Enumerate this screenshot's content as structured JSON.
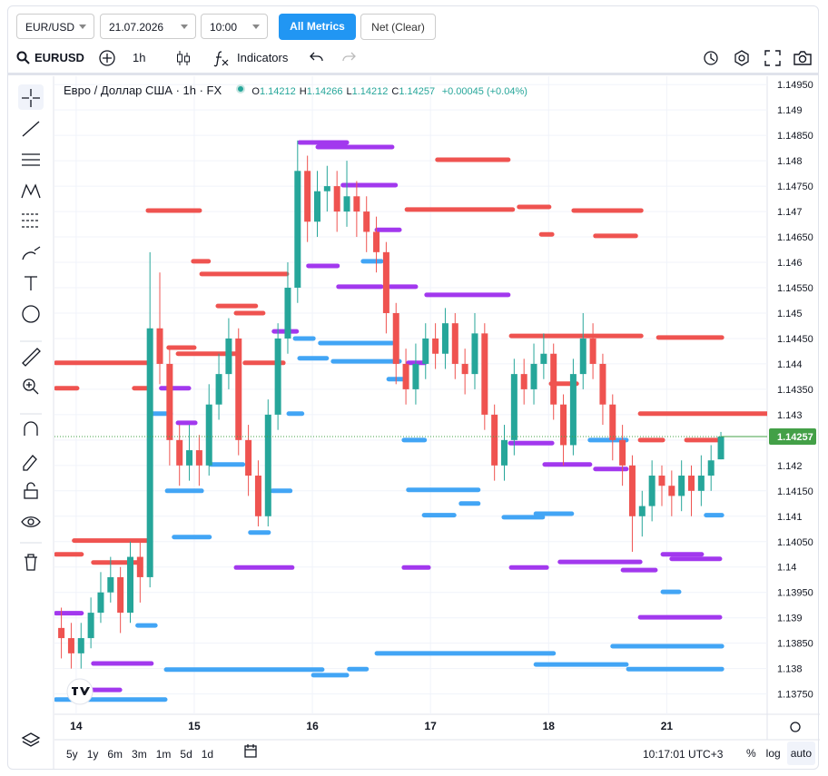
{
  "toolbar": {
    "symbol": "EUR/USD",
    "date": "21.07.2026",
    "time": "10:00",
    "buttons": [
      "All Metrics",
      "Net (Clear)"
    ]
  },
  "header": {
    "ticker": "EURUSD",
    "interval": "1h",
    "indicators": "Indicators"
  },
  "legend": {
    "title": "Евро / Доллар США · 1h · FX",
    "ohlc": [
      {
        "label": "O",
        "value": 1.14212
      },
      {
        "label": "H",
        "value": 1.14266
      },
      {
        "label": "L",
        "value": 1.14212
      },
      {
        "label": "C",
        "value": 1.14257
      }
    ],
    "change": "+0.00045 (+0.04%)"
  },
  "footer": {
    "ranges": [
      "5y",
      "1y",
      "6m",
      "3m",
      "1m",
      "5d",
      "1d"
    ],
    "clock": "10:17:01 UTC+3",
    "options": [
      "%",
      "log",
      "auto"
    ]
  },
  "chart_data": {
    "type": "candlestick",
    "up_color": "#26a69a",
    "down_color": "#ef5350",
    "grid": true,
    "x": [
      -3,
      -1,
      1,
      3,
      5,
      7,
      9,
      11,
      13,
      15,
      17,
      19,
      21,
      23,
      25,
      27,
      29,
      31,
      33,
      35,
      37,
      39,
      41,
      43,
      45,
      47,
      49,
      51,
      53,
      55,
      57,
      59,
      61,
      63,
      65,
      67,
      69,
      71,
      73,
      75,
      77,
      79,
      81,
      83,
      85,
      87,
      89,
      91,
      93,
      95,
      97,
      99,
      101,
      103,
      105,
      107,
      109,
      111,
      113,
      115,
      117,
      119,
      121,
      123,
      125,
      127,
      129,
      131
    ],
    "open": [
      1.1388,
      1.1386,
      1.1383,
      1.1386,
      1.1391,
      1.1395,
      1.1398,
      1.1391,
      1.1402,
      1.1398,
      1.1447,
      1.144,
      1.1425,
      1.142,
      1.1423,
      1.142,
      1.1432,
      1.1438,
      1.1445,
      1.1425,
      1.1418,
      1.141,
      1.143,
      1.1445,
      1.1455,
      1.1478,
      1.1468,
      1.1474,
      1.1475,
      1.147,
      1.1473,
      1.147,
      1.1466,
      1.1462,
      1.145,
      1.144,
      1.1435,
      1.144,
      1.1445,
      1.1442,
      1.1448,
      1.144,
      1.1438,
      1.1446,
      1.143,
      1.142,
      1.1425,
      1.1438,
      1.1435,
      1.144,
      1.1442,
      1.1432,
      1.1424,
      1.1438,
      1.1445,
      1.144,
      1.1432,
      1.1425,
      1.142,
      1.141,
      1.1412,
      1.1418,
      1.1416,
      1.1414,
      1.1418,
      1.1415,
      1.1418,
      1.14212
    ],
    "high": [
      1.1392,
      1.1389,
      1.1389,
      1.1394,
      1.1399,
      1.1402,
      1.14,
      1.1405,
      1.1405,
      1.1462,
      1.1458,
      1.1443,
      1.1428,
      1.1428,
      1.1426,
      1.1436,
      1.1442,
      1.1449,
      1.1447,
      1.1428,
      1.1421,
      1.1433,
      1.1448,
      1.146,
      1.1484,
      1.1481,
      1.1478,
      1.1479,
      1.1478,
      1.148,
      1.1476,
      1.1473,
      1.1469,
      1.1464,
      1.1452,
      1.1443,
      1.1444,
      1.1448,
      1.1448,
      1.1451,
      1.145,
      1.1443,
      1.145,
      1.1448,
      1.1432,
      1.1428,
      1.1441,
      1.1441,
      1.1444,
      1.1446,
      1.1444,
      1.1434,
      1.1441,
      1.145,
      1.1448,
      1.1442,
      1.1434,
      1.1428,
      1.1422,
      1.1415,
      1.1421,
      1.142,
      1.1419,
      1.1421,
      1.142,
      1.1422,
      1.1424,
      1.14266
    ],
    "low": [
      1.1382,
      1.138,
      1.138,
      1.1384,
      1.1389,
      1.1393,
      1.1387,
      1.1389,
      1.1393,
      1.1396,
      1.1436,
      1.142,
      1.1416,
      1.1417,
      1.1416,
      1.1418,
      1.1429,
      1.1435,
      1.1422,
      1.1414,
      1.1408,
      1.1408,
      1.1427,
      1.1442,
      1.1452,
      1.1464,
      1.1465,
      1.147,
      1.1466,
      1.1467,
      1.1465,
      1.1462,
      1.1458,
      1.1446,
      1.1436,
      1.1432,
      1.1432,
      1.1437,
      1.1439,
      1.1439,
      1.1437,
      1.1434,
      1.1435,
      1.1427,
      1.1417,
      1.1417,
      1.1422,
      1.1432,
      1.1432,
      1.1437,
      1.1429,
      1.142,
      1.1422,
      1.1435,
      1.1437,
      1.1428,
      1.1421,
      1.1416,
      1.1403,
      1.1406,
      1.1409,
      1.1412,
      1.141,
      1.1411,
      1.141,
      1.1412,
      1.1415,
      1.14212
    ],
    "close": [
      1.1386,
      1.1383,
      1.1386,
      1.1391,
      1.1395,
      1.1398,
      1.1391,
      1.1402,
      1.1398,
      1.1447,
      1.144,
      1.1425,
      1.142,
      1.1423,
      1.142,
      1.1432,
      1.1438,
      1.1445,
      1.1425,
      1.1418,
      1.141,
      1.143,
      1.1445,
      1.1455,
      1.1478,
      1.1468,
      1.1474,
      1.1475,
      1.147,
      1.1473,
      1.147,
      1.1466,
      1.1462,
      1.145,
      1.144,
      1.1435,
      1.144,
      1.1445,
      1.1442,
      1.1448,
      1.144,
      1.1438,
      1.1446,
      1.143,
      1.142,
      1.1425,
      1.1438,
      1.1435,
      1.144,
      1.1442,
      1.1432,
      1.1424,
      1.1438,
      1.1445,
      1.144,
      1.1432,
      1.1425,
      1.142,
      1.141,
      1.1412,
      1.1418,
      1.1416,
      1.1414,
      1.1418,
      1.1415,
      1.1418,
      1.1421,
      1.14257
    ],
    "xlim": [
      -4.4,
      140.4
    ],
    "xticks": [
      {
        "value": 0,
        "label": "14"
      },
      {
        "value": 24,
        "label": "15"
      },
      {
        "value": 48,
        "label": "16"
      },
      {
        "value": 72,
        "label": "17"
      },
      {
        "value": 96,
        "label": "18"
      },
      {
        "value": 120,
        "label": "21"
      }
    ],
    "ylim": [
      1.1371,
      1.1497
    ],
    "yticks": [
      {
        "value": 1.1375,
        "label": "1.13750"
      },
      1.138,
      {
        "value": 1.1385,
        "label": "1.13850"
      },
      1.139,
      {
        "value": 1.1395,
        "label": "1.13950"
      },
      1.14,
      {
        "value": 1.1405,
        "label": "1.14050"
      },
      1.141,
      {
        "value": 1.1415,
        "label": "1.14150"
      },
      1.142,
      {
        "value": 1.1425,
        "label": "1.14250"
      },
      1.143,
      {
        "value": 1.1435,
        "label": "1.14350"
      },
      1.144,
      {
        "value": 1.1445,
        "label": "1.14450"
      },
      1.145,
      {
        "value": 1.1455,
        "label": "1.14550"
      },
      1.146,
      {
        "value": 1.1465,
        "label": "1.14650"
      },
      1.147,
      {
        "value": 1.1475,
        "label": "1.14750"
      },
      1.148,
      {
        "value": 1.1485,
        "label": "1.14850"
      },
      1.149,
      {
        "value": 1.1495,
        "label": "1.14950"
      }
    ],
    "last_price": 1.14257,
    "last_price_color": "#43a047",
    "level_groups": [
      {
        "color": "#ef5350",
        "prices": [
          1.14402,
          1.14352,
          1.14702,
          1.14602,
          1.14577,
          1.14514,
          1.145,
          1.14432,
          1.1442,
          1.14402,
          1.14352,
          1.14052,
          1.14025,
          1.14009,
          1.14802,
          1.14704,
          1.14702,
          1.14652,
          1.14455,
          1.14452,
          1.14361,
          1.14302,
          1.1425,
          1.1425,
          1.14655,
          1.14709
        ],
        "from": [
          -4.1,
          -4.1,
          14.6,
          23.8,
          25.5,
          28.8,
          32.5,
          18.8,
          20.7,
          34.3,
          11.8,
          -0.4,
          -4.1,
          3.5,
          73.4,
          67.2,
          101.1,
          105.5,
          88.4,
          118.3,
          96.5,
          114.6,
          114.6,
          124,
          94.5,
          90
        ],
        "to": [
          15.1,
          0.2,
          25.1,
          26.9,
          42.8,
          36.5,
          38,
          24,
          32.8,
          42.1,
          14.8,
          14.9,
          1.1,
          12.5,
          87.8,
          88.7,
          114.8,
          113.7,
          114.8,
          131.2,
          101.7,
          141,
          119.2,
          130.3,
          96.7,
          96.1
        ]
      },
      {
        "color": "#a238ee",
        "prices": [
          1.14836,
          1.14827,
          1.14752,
          1.14593,
          1.14552,
          1.14664,
          1.14552,
          1.14536,
          1.14464,
          1.14402,
          1.14352,
          1.14284,
          1.14244,
          1.14202,
          1.14193,
          1.13999,
          1.13999,
          1.13999,
          1.1401,
          1.13994,
          1.14025,
          1.14016,
          1.13901,
          1.1381,
          1.13909,
          1.13758
        ],
        "from": [
          45.4,
          49.1,
          54.2,
          47.2,
          53.3,
          61.1,
          63.8,
          71.2,
          40.2,
          67.5,
          17.3,
          20.7,
          88.2,
          95.2,
          105.5,
          32.5,
          66.6,
          88.4,
          98.3,
          111.1,
          119.2,
          121,
          114.6,
          3.5,
          -4.1,
          3
        ],
        "to": [
          55,
          64.2,
          64.9,
          53.1,
          62,
          65.7,
          69,
          87.8,
          44.8,
          70.8,
          22.9,
          24.2,
          96.7,
          104.4,
          111.8,
          43.9,
          71.6,
          95.6,
          114.6,
          117.7,
          127.1,
          130.8,
          130.8,
          15.3,
          1.1,
          8.9
        ]
      },
      {
        "color": "#42a5f5",
        "prices": [
          1.14602,
          1.1445,
          1.14441,
          1.14411,
          1.14405,
          1.1437,
          1.14302,
          1.14302,
          1.1425,
          1.1425,
          1.14202,
          1.1415,
          1.1415,
          1.14152,
          1.14125,
          1.14102,
          1.14098,
          1.14105,
          1.14059,
          1.14068,
          1.13885,
          1.13798,
          1.13787,
          1.13799,
          1.1383,
          1.13808,
          1.13844,
          1.13799,
          1.13739,
          1.13951,
          1.14102
        ],
        "from": [
          58.3,
          44.5,
          49.6,
          45.4,
          52.2,
          63.5,
          15.1,
          43.2,
          66.6,
          104.4,
          27.3,
          18.5,
          39.9,
          67.5,
          78.2,
          70.7,
          86.9,
          93.4,
          19.9,
          35.4,
          12.5,
          18.3,
          48.2,
          55.5,
          61.1,
          93.4,
          109,
          112.2,
          -4.1,
          119.2,
          128
        ],
        "to": [
          62,
          48.2,
          64.2,
          50.9,
          65.7,
          66.4,
          19.2,
          45.9,
          70.8,
          111.8,
          33.9,
          25.5,
          43.5,
          81.7,
          81.7,
          76.8,
          94.8,
          100.7,
          27.1,
          39.1,
          16.1,
          50,
          55,
          59,
          97,
          111.8,
          131.2,
          131.2,
          18.1,
          122.5,
          131.2
        ]
      }
    ]
  }
}
